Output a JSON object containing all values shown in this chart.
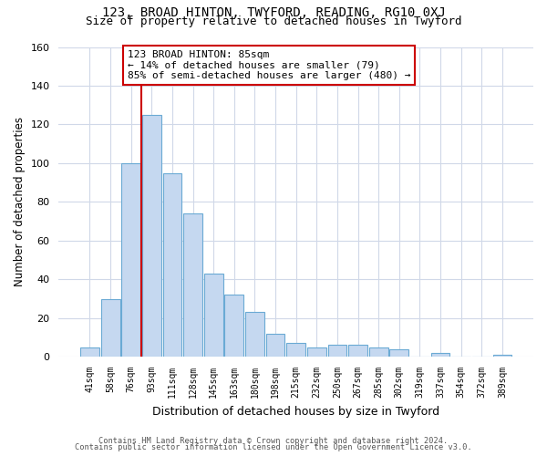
{
  "title": "123, BROAD HINTON, TWYFORD, READING, RG10 0XJ",
  "subtitle": "Size of property relative to detached houses in Twyford",
  "xlabel": "Distribution of detached houses by size in Twyford",
  "ylabel": "Number of detached properties",
  "footnote1": "Contains HM Land Registry data © Crown copyright and database right 2024.",
  "footnote2": "Contains public sector information licensed under the Open Government Licence v3.0.",
  "bin_labels": [
    "41sqm",
    "58sqm",
    "76sqm",
    "93sqm",
    "111sqm",
    "128sqm",
    "145sqm",
    "163sqm",
    "180sqm",
    "198sqm",
    "215sqm",
    "232sqm",
    "250sqm",
    "267sqm",
    "285sqm",
    "302sqm",
    "319sqm",
    "337sqm",
    "354sqm",
    "372sqm",
    "389sqm"
  ],
  "bar_heights": [
    5,
    30,
    100,
    125,
    95,
    74,
    43,
    32,
    23,
    12,
    7,
    5,
    6,
    6,
    5,
    4,
    0,
    2,
    0,
    0,
    1
  ],
  "bar_color": "#c5d8f0",
  "bar_edgecolor": "#6aaad4",
  "vline_color": "#cc0000",
  "annotation_line1": "123 BROAD HINTON: 85sqm",
  "annotation_line2": "← 14% of detached houses are smaller (79)",
  "annotation_line3": "85% of semi-detached houses are larger (480) →",
  "annotation_box_color": "#cc0000",
  "ylim": [
    0,
    160
  ],
  "yticks": [
    0,
    20,
    40,
    60,
    80,
    100,
    120,
    140,
    160
  ],
  "background_color": "#ffffff",
  "grid_color": "#d0d8e8"
}
